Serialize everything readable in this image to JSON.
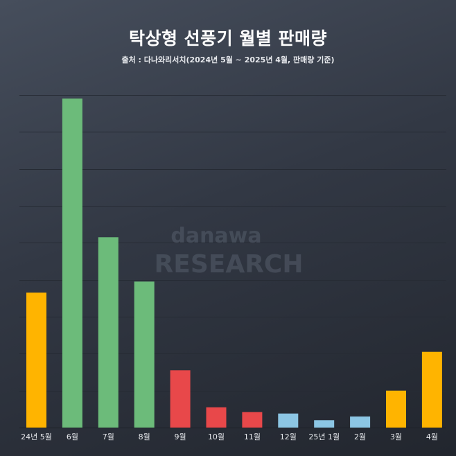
{
  "chart_data": {
    "type": "bar",
    "title": "탁상형 선풍기 월별 판매량",
    "subtitle": "출처 : 다나와리서치(2024년 5월 ~ 2025년 4월, 판매량 기준)",
    "categories": [
      "24년 5월",
      "6월",
      "7월",
      "8월",
      "9월",
      "10월",
      "11월",
      "12월",
      "25년 1월",
      "2월",
      "3월",
      "4월"
    ],
    "values": [
      36.5,
      89,
      51.5,
      39.5,
      15.5,
      5.5,
      4.2,
      3.8,
      2.0,
      3.0,
      10.0,
      20.5
    ],
    "colors": [
      "#ffb400",
      "#6cbb7a",
      "#6cbb7a",
      "#6cbb7a",
      "#e8484a",
      "#e8484a",
      "#e8484a",
      "#8cc6e4",
      "#8cc6e4",
      "#8cc6e4",
      "#ffb400",
      "#ffb400"
    ],
    "ylim": [
      0,
      90
    ],
    "grid": true,
    "xlabel": "",
    "ylabel": ""
  },
  "watermark": {
    "line1": "danawa",
    "line2": "RESEARCH"
  }
}
